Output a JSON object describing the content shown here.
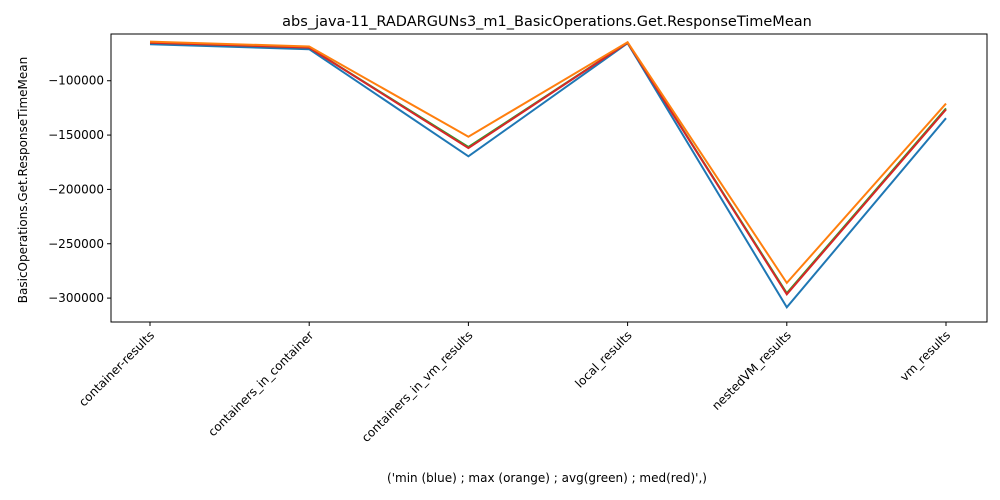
{
  "chart_data": {
    "type": "line",
    "title": "abs_java-11_RADARGUNs3_m1_BasicOperations.Get.ResponseTimeMean",
    "xlabel": "('min (blue) ; max (orange) ; avg(green) ; med(red)',)",
    "ylabel": "BasicOperations.Get.ResponseTimeMean",
    "categories": [
      "container-results",
      "containers_in_container",
      "containers_in_vm_results",
      "local_results",
      "nestedVM_results",
      "vm_results"
    ],
    "ylim": [
      -322000,
      -57000
    ],
    "yticks": [
      -100000,
      -150000,
      -200000,
      -250000,
      -300000
    ],
    "ytick_labels": [
      "−100000",
      "−150000",
      "−200000",
      "−250000",
      "−300000"
    ],
    "grid": false,
    "series": [
      {
        "color": "#1f77b4",
        "values": [
          -66500,
          -71000,
          -169500,
          -65500,
          -308500,
          -134500
        ]
      },
      {
        "color": "#2ca02c",
        "values": [
          -65000,
          -69500,
          -161000,
          -65000,
          -295500,
          -125500
        ]
      },
      {
        "color": "#d62728",
        "values": [
          -65000,
          -69500,
          -162000,
          -65000,
          -296500,
          -126500
        ]
      },
      {
        "color": "#ff7f0e",
        "values": [
          -64000,
          -68500,
          -151500,
          -64500,
          -286000,
          -121000
        ]
      }
    ]
  }
}
